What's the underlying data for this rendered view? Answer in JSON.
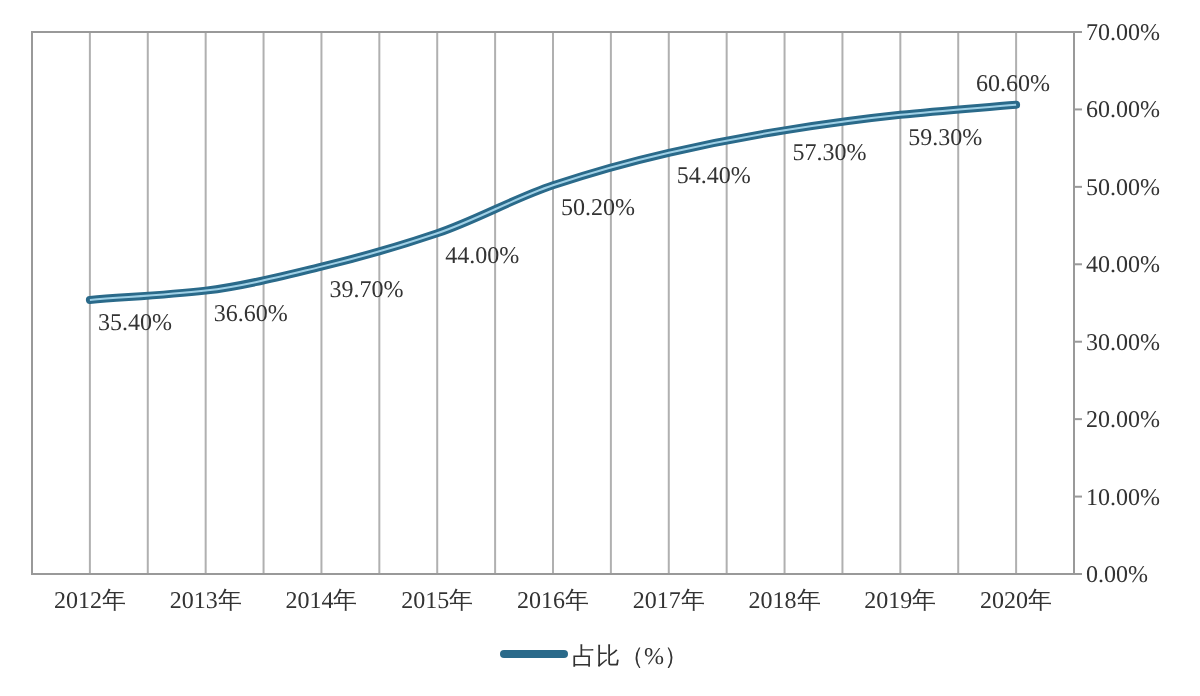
{
  "chart_data": {
    "type": "line",
    "categories": [
      "2012年",
      "2013年",
      "2014年",
      "2015年",
      "2016年",
      "2017年",
      "2018年",
      "2019年",
      "2020年"
    ],
    "series": [
      {
        "name": "占比（%）",
        "color": "#2a6a8a",
        "values": [
          35.4,
          36.6,
          39.7,
          44.0,
          50.2,
          54.4,
          57.3,
          59.3,
          60.6
        ],
        "value_labels": [
          "35.40%",
          "36.60%",
          "39.70%",
          "44.00%",
          "50.20%",
          "54.40%",
          "57.30%",
          "59.30%",
          "60.60%"
        ]
      }
    ],
    "ylim": [
      0,
      70
    ],
    "yticks": [
      {
        "value": 0,
        "label": "0.00%"
      },
      {
        "value": 10,
        "label": "10.00%"
      },
      {
        "value": 20,
        "label": "20.00%"
      },
      {
        "value": 30,
        "label": "30.00%"
      },
      {
        "value": 40,
        "label": "40.00%"
      },
      {
        "value": 50,
        "label": "50.00%"
      },
      {
        "value": 60,
        "label": "60.00%"
      },
      {
        "value": 70,
        "label": "70.00%"
      }
    ],
    "grid": "x",
    "legend": "bottom",
    "marker": "none",
    "line_style": "solid"
  }
}
